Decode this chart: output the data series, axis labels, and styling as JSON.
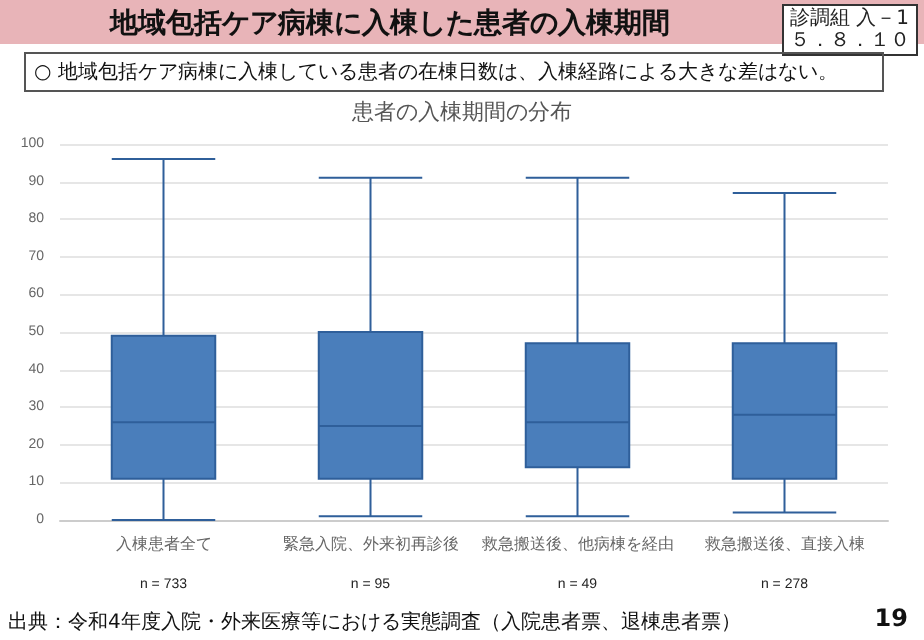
{
  "chart_data": {
    "type": "box",
    "title": "地域包括ケア病棟に入棟した患者の入棟期間",
    "subtitle": "○ 地域包括ケア病棟に入棟している患者の在棟日数は、入棟経路による大きな差はない。",
    "annotations": [
      "診調組 入－1\n５．８．１０",
      "患者の入棟期間の分布",
      "n = 733",
      "n = 95",
      "n = 49",
      "n = 278",
      "出典：令和4年度入院・外来医療等における実態調査（入院患者票、退棟患者票）",
      "19"
    ],
    "categories": [
      "入棟患者全て",
      "緊急入院、外来初再診後",
      "救急搬送後、他病棟を経由",
      "救急搬送後、直接入棟"
    ],
    "color": "#4a7ebb",
    "boxes": [
      {
        "low": 0,
        "q1": 11,
        "median": 26,
        "q3": 49,
        "high": 96
      },
      {
        "low": 1,
        "q1": 11,
        "median": 25,
        "q3": 50,
        "high": 91
      },
      {
        "low": 1,
        "q1": 14,
        "median": 26,
        "q3": 47,
        "high": 91
      },
      {
        "low": 2,
        "q1": 11,
        "median": 28,
        "q3": 47,
        "high": 87
      }
    ],
    "ylim": [
      0,
      100
    ],
    "yticks": [
      0,
      10,
      20,
      30,
      40,
      50,
      60,
      70,
      80,
      90,
      100
    ],
    "grid": "y"
  }
}
